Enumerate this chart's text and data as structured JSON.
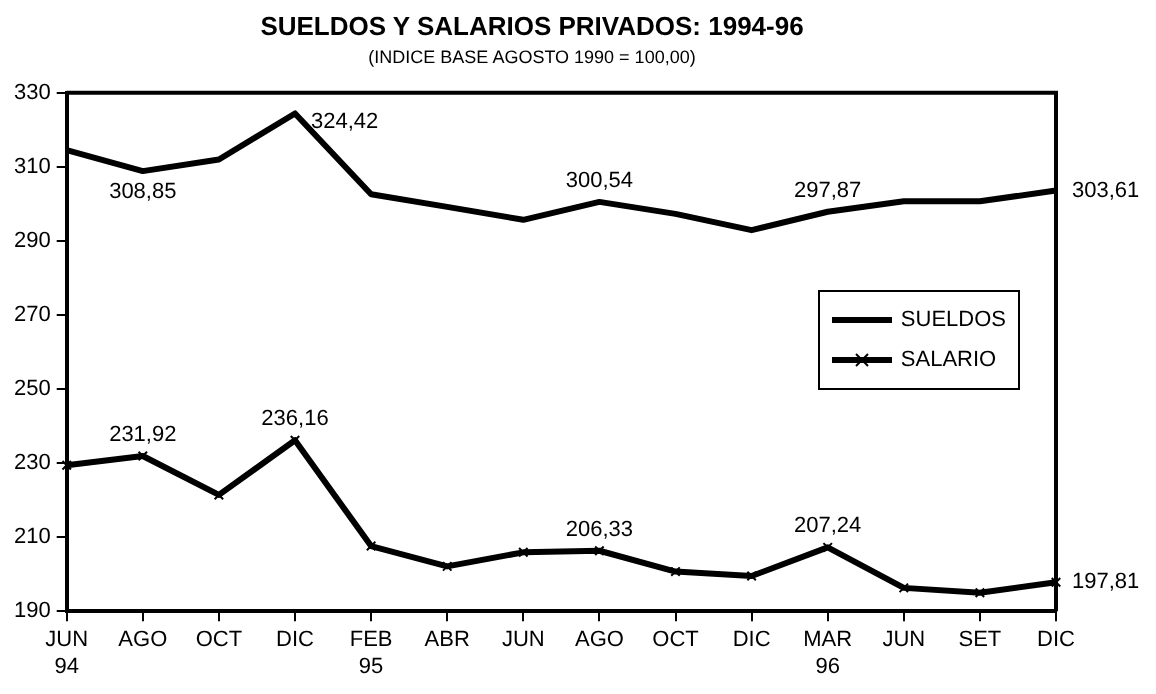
{
  "chart_data": {
    "type": "line",
    "title": "SUELDOS Y SALARIOS PRIVADOS: 1994-96",
    "subtitle": "(INDICE BASE AGOSTO 1990 = 100,00)",
    "categories": [
      "JUN\n94",
      "AGO",
      "OCT",
      "DIC",
      "FEB\n95",
      "ABR",
      "JUN",
      "AGO",
      "OCT",
      "DIC",
      "MAR\n96",
      "JUN",
      "SET",
      "DIC"
    ],
    "series": [
      {
        "name": "SUELDOS",
        "color": "#000000",
        "marker": "none",
        "values": [
          314.5,
          308.85,
          312,
          324.42,
          302.6,
          299.2,
          295.7,
          300.54,
          297.3,
          292.9,
          297.87,
          300.7,
          300.7,
          303.61
        ],
        "value_labels": [
          null,
          "308,85",
          null,
          "324,42",
          null,
          null,
          null,
          "300,54",
          null,
          null,
          "297,87",
          null,
          null,
          "303,61"
        ]
      },
      {
        "name": "SALARIO",
        "color": "#000000",
        "marker": "cross",
        "values": [
          229.4,
          231.92,
          221.4,
          236.16,
          207.6,
          202.1,
          205.9,
          206.33,
          200.7,
          199.5,
          207.24,
          196.3,
          195,
          197.81
        ],
        "value_labels": [
          null,
          "231,92",
          null,
          "236,16",
          null,
          null,
          null,
          "206,33",
          null,
          null,
          "207,24",
          null,
          null,
          "197,81"
        ]
      }
    ],
    "ylim": [
      190,
      330
    ],
    "yticks": [
      190,
      210,
      230,
      250,
      270,
      290,
      310,
      330
    ],
    "grid": false,
    "legend": "right",
    "line_style": "solid"
  }
}
